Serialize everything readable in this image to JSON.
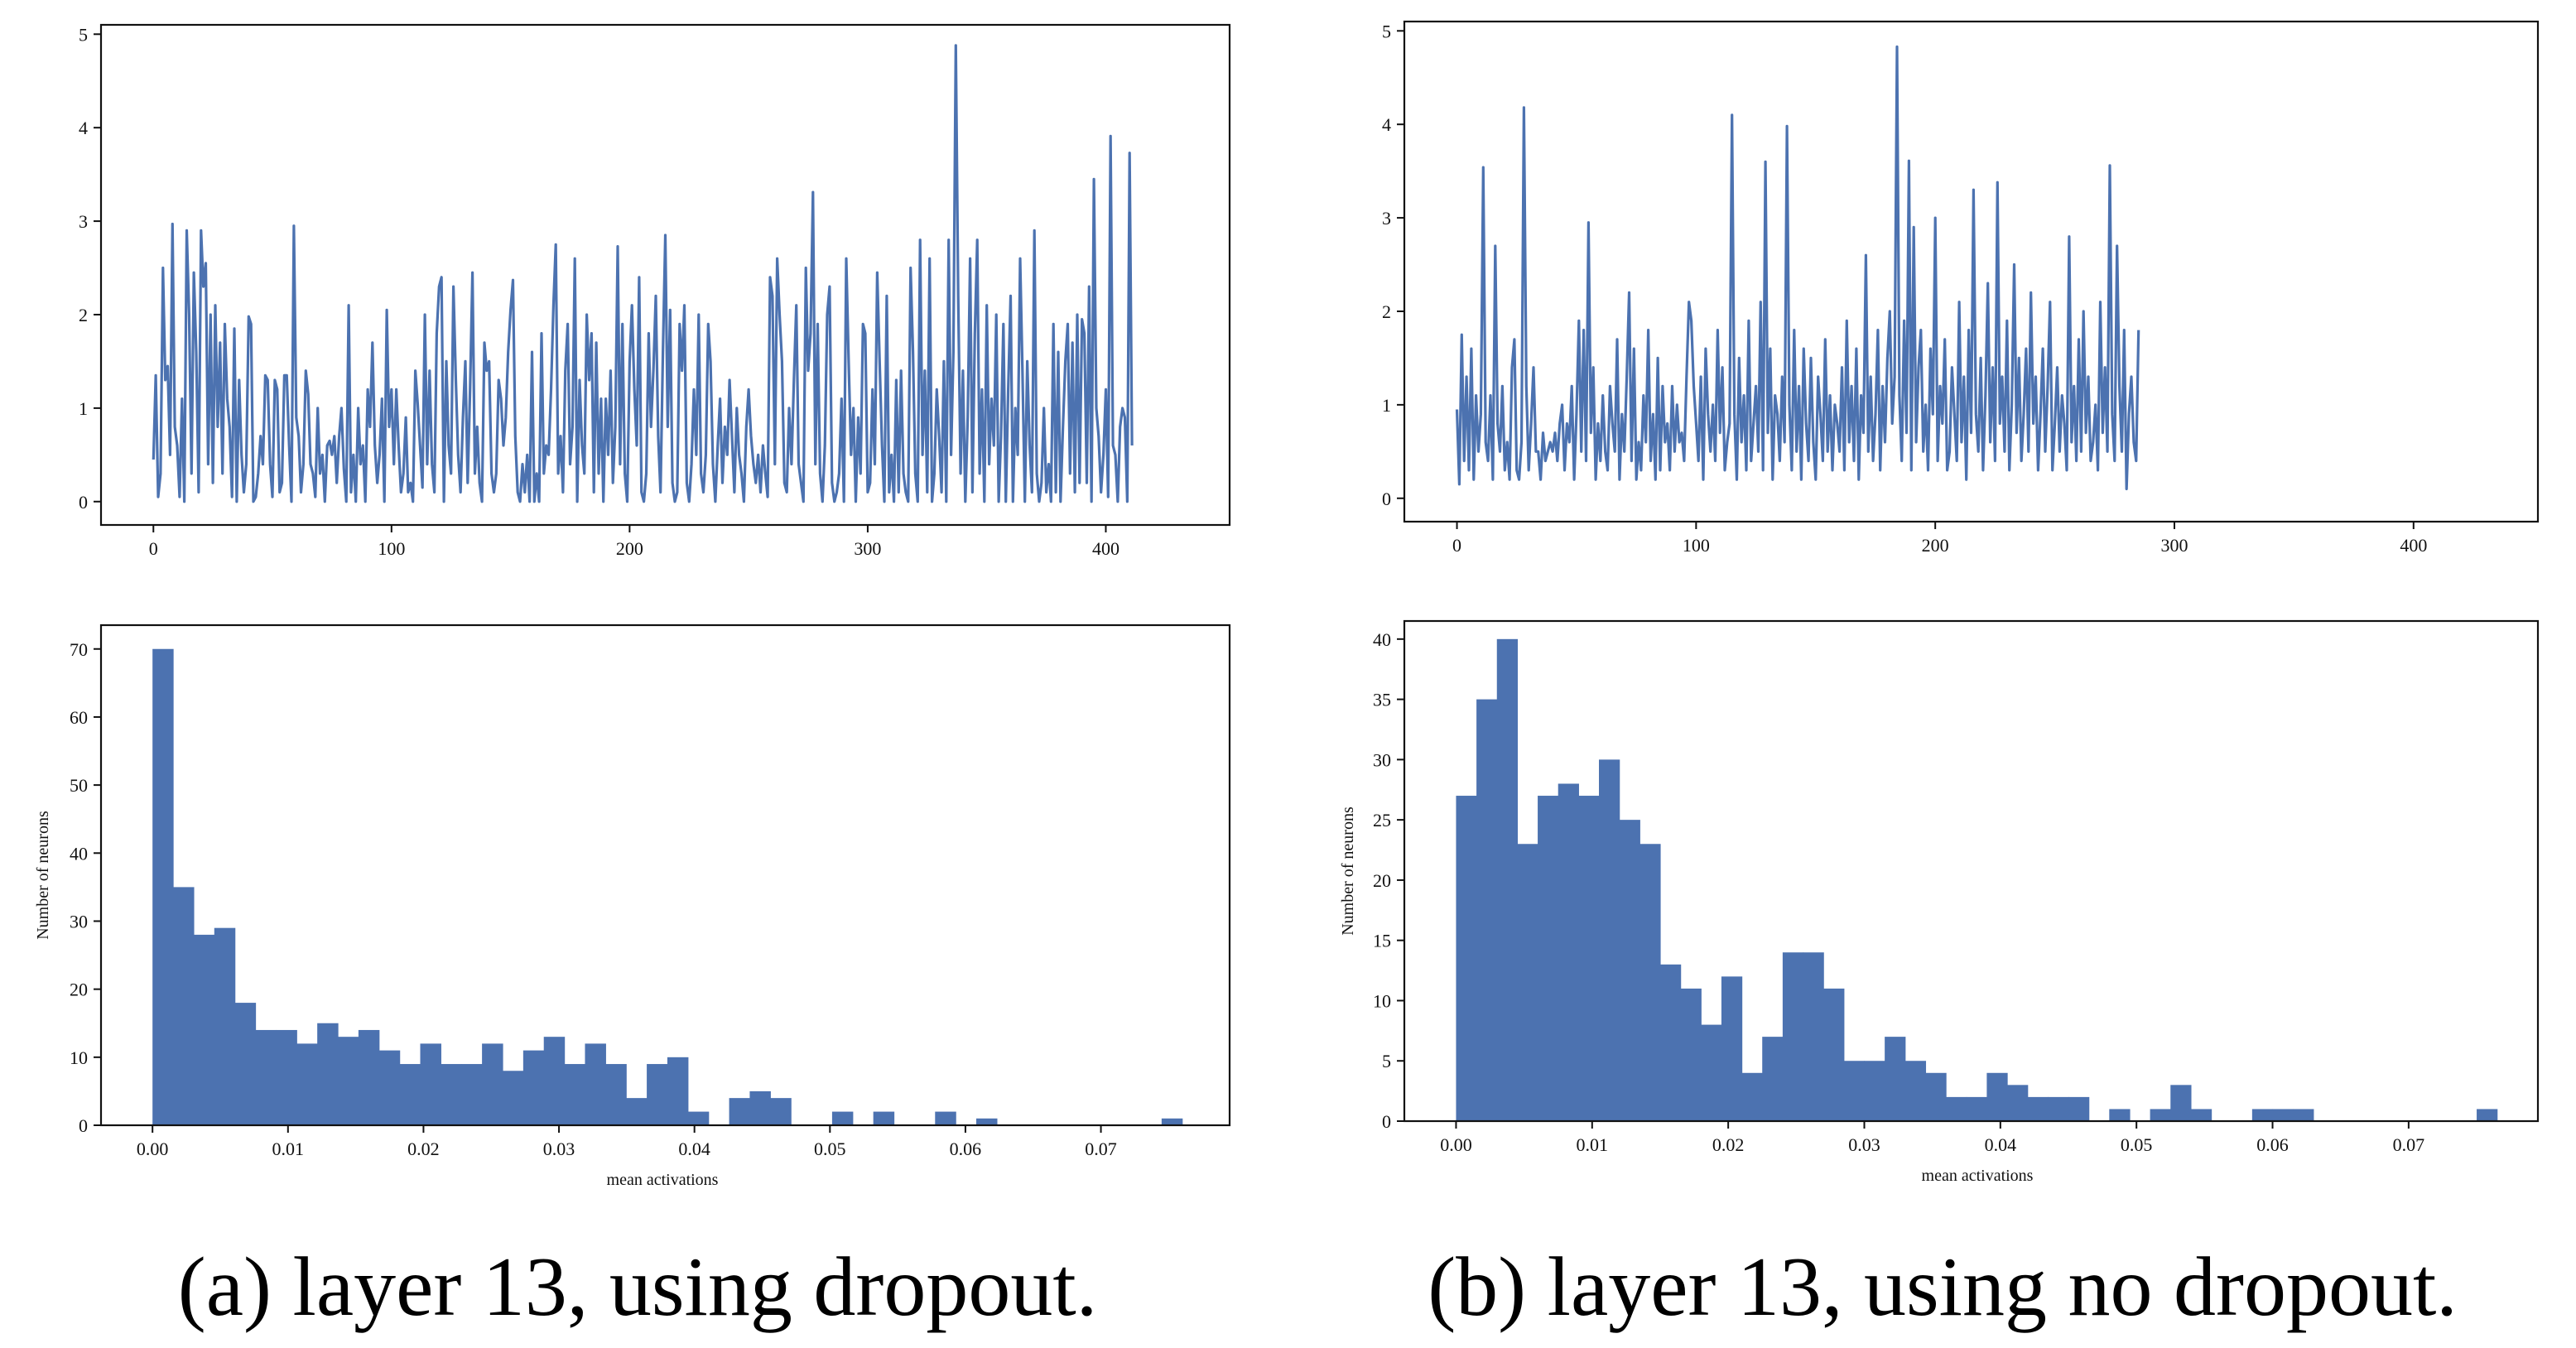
{
  "captions": {
    "a": "(a) layer 13, using dropout.",
    "b": "(b) layer 13, using no dropout."
  },
  "colors": {
    "series": "#4c72b0"
  },
  "chart_data": [
    {
      "id": "a_top",
      "type": "line",
      "title": "",
      "xlabel": "",
      "ylabel": "",
      "xlim": [
        -22,
        452
      ],
      "ylim": [
        -0.25,
        5.1
      ],
      "xticks": [
        0,
        100,
        200,
        300,
        400
      ],
      "yticks": [
        0,
        1,
        2,
        3,
        4,
        5
      ],
      "grid": false,
      "x_start": 0,
      "values": [
        0.45,
        1.35,
        0.05,
        0.3,
        2.5,
        1.3,
        1.45,
        0.5,
        2.97,
        0.8,
        0.6,
        0.05,
        1.1,
        0.0,
        2.9,
        2.0,
        0.3,
        2.45,
        1.6,
        0.1,
        2.9,
        2.3,
        2.55,
        0.4,
        2.0,
        0.2,
        2.1,
        0.8,
        1.7,
        0.3,
        1.9,
        1.1,
        0.8,
        0.05,
        1.85,
        0.0,
        1.3,
        0.5,
        0.1,
        0.4,
        1.98,
        1.9,
        0.0,
        0.05,
        0.3,
        0.7,
        0.4,
        1.35,
        1.3,
        0.4,
        0.05,
        1.3,
        1.2,
        0.1,
        0.2,
        1.35,
        1.35,
        0.6,
        0.0,
        2.95,
        0.9,
        0.7,
        0.1,
        0.4,
        1.4,
        1.15,
        0.4,
        0.3,
        0.05,
        1.0,
        0.3,
        0.5,
        0.0,
        0.6,
        0.65,
        0.5,
        0.7,
        0.2,
        0.7,
        1.0,
        0.35,
        0.0,
        2.1,
        0.1,
        0.5,
        0.0,
        1.0,
        0.4,
        0.6,
        0.0,
        1.2,
        0.8,
        1.7,
        0.6,
        0.2,
        0.5,
        1.1,
        0.0,
        2.05,
        0.8,
        1.2,
        0.4,
        1.2,
        0.6,
        0.1,
        0.3,
        0.9,
        0.1,
        0.2,
        0.0,
        1.4,
        1.05,
        0.6,
        0.15,
        2.0,
        0.4,
        1.4,
        0.4,
        0.1,
        1.8,
        2.3,
        2.4,
        0.0,
        1.5,
        0.6,
        0.3,
        2.3,
        1.3,
        0.5,
        0.1,
        0.9,
        1.5,
        0.2,
        1.2,
        2.45,
        0.3,
        0.8,
        0.2,
        0.0,
        1.7,
        1.4,
        1.5,
        0.3,
        0.1,
        0.3,
        1.3,
        1.1,
        0.6,
        0.9,
        1.6,
        2.05,
        2.37,
        0.7,
        0.1,
        0.0,
        0.4,
        0.1,
        0.5,
        0.0,
        1.6,
        0.0,
        0.3,
        0.0,
        1.8,
        0.3,
        0.6,
        0.5,
        1.2,
        2.1,
        2.75,
        0.3,
        0.7,
        0.1,
        1.4,
        1.9,
        0.4,
        0.8,
        2.6,
        0.0,
        1.3,
        0.6,
        0.3,
        2.0,
        1.3,
        1.8,
        0.1,
        1.7,
        0.3,
        1.1,
        0.0,
        1.1,
        0.5,
        1.4,
        0.2,
        0.8,
        2.73,
        0.4,
        1.9,
        0.3,
        0.0,
        1.5,
        2.1,
        1.2,
        0.6,
        2.4,
        0.1,
        0.0,
        0.3,
        1.8,
        0.8,
        1.4,
        2.2,
        0.7,
        0.1,
        1.6,
        2.85,
        0.8,
        2.05,
        0.2,
        0.0,
        0.1,
        1.9,
        1.4,
        2.1,
        0.2,
        0.0,
        0.4,
        1.2,
        0.5,
        2.0,
        0.3,
        0.1,
        0.5,
        1.9,
        1.5,
        0.4,
        0.0,
        0.6,
        1.1,
        0.2,
        0.8,
        0.5,
        1.3,
        0.7,
        0.1,
        1.0,
        0.5,
        0.3,
        0.0,
        0.8,
        1.2,
        0.7,
        0.4,
        0.2,
        0.5,
        0.1,
        0.6,
        0.3,
        0.05,
        2.4,
        2.2,
        0.4,
        2.6,
        2.0,
        1.5,
        0.2,
        0.1,
        1.0,
        0.4,
        1.3,
        2.1,
        0.4,
        0.2,
        0.0,
        2.5,
        1.4,
        1.8,
        3.31,
        0.4,
        1.9,
        0.3,
        0.0,
        0.6,
        2.0,
        2.3,
        0.2,
        0.0,
        0.1,
        0.3,
        1.1,
        0.0,
        2.6,
        1.5,
        0.5,
        1.0,
        0.0,
        0.9,
        0.3,
        1.9,
        1.8,
        0.1,
        0.2,
        1.2,
        0.4,
        2.45,
        1.5,
        0.6,
        0.0,
        2.2,
        0.1,
        0.5,
        0.0,
        1.3,
        0.1,
        1.4,
        0.3,
        0.1,
        0.0,
        2.5,
        1.6,
        0.3,
        0.0,
        2.8,
        0.5,
        1.4,
        0.1,
        2.6,
        0.0,
        0.3,
        1.2,
        0.7,
        0.1,
        1.5,
        0.0,
        2.8,
        0.5,
        1.6,
        4.88,
        2.2,
        0.3,
        1.4,
        0.0,
        0.9,
        2.6,
        0.1,
        1.8,
        2.8,
        0.3,
        1.2,
        0.0,
        2.1,
        0.4,
        1.1,
        0.6,
        2.0,
        0.0,
        0.7,
        1.9,
        0.0,
        1.2,
        2.2,
        0.0,
        1.0,
        0.5,
        2.6,
        1.4,
        0.0,
        1.5,
        0.6,
        0.1,
        2.9,
        0.3,
        0.0,
        0.2,
        1.0,
        0.1,
        0.4,
        0.0,
        1.9,
        0.1,
        1.6,
        0.0,
        0.8,
        1.5,
        1.9,
        0.3,
        1.7,
        0.1,
        2.0,
        0.2,
        1.95,
        1.8,
        0.2,
        2.3,
        0.0,
        3.45,
        1.0,
        0.7,
        0.1,
        0.5,
        1.2,
        0.05,
        3.91,
        0.6,
        0.5,
        0.0,
        0.8,
        1.0,
        0.9,
        0.0,
        3.73,
        0.6
      ]
    },
    {
      "id": "b_top",
      "type": "line",
      "title": "",
      "xlabel": "",
      "ylabel": "",
      "xlim": [
        -22,
        452
      ],
      "ylim": [
        -0.25,
        5.1
      ],
      "xticks": [
        0,
        100,
        200,
        300,
        400
      ],
      "yticks": [
        0,
        1,
        2,
        3,
        4,
        5
      ],
      "grid": false,
      "x_start": 0,
      "values": [
        0.95,
        0.15,
        1.75,
        0.4,
        1.3,
        0.3,
        1.6,
        0.2,
        1.1,
        0.5,
        0.9,
        3.54,
        0.6,
        0.4,
        1.1,
        0.2,
        2.7,
        0.8,
        0.5,
        1.2,
        0.3,
        0.6,
        0.2,
        1.4,
        1.7,
        0.3,
        0.2,
        0.6,
        4.18,
        1.2,
        0.3,
        0.8,
        1.4,
        0.5,
        0.5,
        0.2,
        0.7,
        0.4,
        0.5,
        0.6,
        0.5,
        0.7,
        0.4,
        0.8,
        1.0,
        0.3,
        0.8,
        0.6,
        1.2,
        0.2,
        0.9,
        1.9,
        0.5,
        1.8,
        0.4,
        2.95,
        0.7,
        1.4,
        0.2,
        0.8,
        0.4,
        1.1,
        0.5,
        0.3,
        1.2,
        0.8,
        0.5,
        1.7,
        0.2,
        0.9,
        0.5,
        1.3,
        2.2,
        0.4,
        1.6,
        0.2,
        0.6,
        0.3,
        1.1,
        0.6,
        1.8,
        0.4,
        0.9,
        0.2,
        1.5,
        0.3,
        1.2,
        0.6,
        0.8,
        0.3,
        1.2,
        0.5,
        1.0,
        0.6,
        0.7,
        0.4,
        1.3,
        2.1,
        1.9,
        1.2,
        0.8,
        0.4,
        1.3,
        0.2,
        1.6,
        0.9,
        0.5,
        1.0,
        0.4,
        1.8,
        0.7,
        1.4,
        0.3,
        0.6,
        0.8,
        4.1,
        0.9,
        0.2,
        1.5,
        0.6,
        1.1,
        0.3,
        1.9,
        0.4,
        0.8,
        1.2,
        0.5,
        2.1,
        0.3,
        3.6,
        0.7,
        1.6,
        0.2,
        1.1,
        0.9,
        0.4,
        1.3,
        0.6,
        3.98,
        1.0,
        0.3,
        1.8,
        0.5,
        1.2,
        0.2,
        1.6,
        0.8,
        0.4,
        1.5,
        0.6,
        0.2,
        1.3,
        0.9,
        0.4,
        1.7,
        0.5,
        1.1,
        0.3,
        1.0,
        0.8,
        0.5,
        1.4,
        0.3,
        1.9,
        0.6,
        1.2,
        0.4,
        1.6,
        0.2,
        1.1,
        0.7,
        2.6,
        0.5,
        1.3,
        0.4,
        0.9,
        1.8,
        0.3,
        1.2,
        0.6,
        1.5,
        2.0,
        0.8,
        1.3,
        4.83,
        1.1,
        0.4,
        1.9,
        0.7,
        3.61,
        0.3,
        2.9,
        0.6,
        1.4,
        1.8,
        0.5,
        1.0,
        0.3,
        1.6,
        0.9,
        3.0,
        0.4,
        1.2,
        0.8,
        1.7,
        0.3,
        0.5,
        1.4,
        0.9,
        0.4,
        2.1,
        0.6,
        1.3,
        0.2,
        1.8,
        0.7,
        3.3,
        0.9,
        0.5,
        1.5,
        0.3,
        1.1,
        2.3,
        0.6,
        1.4,
        0.4,
        3.38,
        0.8,
        1.3,
        0.5,
        1.9,
        0.3,
        1.0,
        2.5,
        0.7,
        1.5,
        0.4,
        0.9,
        1.6,
        0.5,
        2.2,
        0.8,
        1.3,
        0.3,
        0.9,
        1.6,
        0.5,
        1.2,
        2.1,
        0.3,
        0.8,
        1.4,
        0.5,
        1.1,
        0.8,
        0.3,
        2.8,
        0.6,
        1.2,
        0.4,
        1.7,
        0.5,
        2.0,
        0.7,
        1.3,
        0.4,
        0.6,
        1.0,
        0.3,
        2.1,
        0.7,
        1.4,
        0.5,
        3.56,
        0.9,
        0.4,
        2.7,
        1.2,
        0.5,
        1.8,
        0.1,
        0.9,
        1.3,
        0.6,
        0.4,
        1.8
      ]
    },
    {
      "id": "a_bottom",
      "type": "bar",
      "title": "",
      "xlabel": "mean activations",
      "ylabel": "Number of neurons",
      "xlim": [
        -0.0038,
        0.0795
      ],
      "ylim": [
        0,
        73.5
      ],
      "xticks": [
        0.0,
        0.01,
        0.02,
        0.03,
        0.04,
        0.05,
        0.06,
        0.07
      ],
      "xtick_labels": [
        "0.00",
        "0.01",
        "0.02",
        "0.03",
        "0.04",
        "0.05",
        "0.06",
        "0.07"
      ],
      "yticks": [
        0,
        10,
        20,
        30,
        40,
        50,
        60,
        70
      ],
      "grid": false,
      "bin_start": 0.0,
      "bin_width": 0.00152,
      "values": [
        70,
        35,
        28,
        29,
        18,
        14,
        14,
        12,
        15,
        13,
        14,
        11,
        9,
        12,
        9,
        9,
        12,
        8,
        11,
        13,
        9,
        12,
        9,
        4,
        9,
        10,
        2,
        0,
        4,
        5,
        4,
        0,
        0,
        2,
        0,
        2,
        0,
        0,
        2,
        0,
        1,
        0,
        0,
        0,
        0,
        0,
        0,
        0,
        0,
        1
      ]
    },
    {
      "id": "b_bottom",
      "type": "bar",
      "title": "",
      "xlabel": "mean activations",
      "ylabel": "Number of neurons",
      "xlim": [
        -0.0038,
        0.0795
      ],
      "ylim": [
        0,
        41.5
      ],
      "xticks": [
        0.0,
        0.01,
        0.02,
        0.03,
        0.04,
        0.05,
        0.06,
        0.07
      ],
      "xtick_labels": [
        "0.00",
        "0.01",
        "0.02",
        "0.03",
        "0.04",
        "0.05",
        "0.06",
        "0.07"
      ],
      "yticks": [
        0,
        5,
        10,
        15,
        20,
        25,
        30,
        35,
        40
      ],
      "grid": false,
      "bin_start": 0.0,
      "bin_width": 0.0015,
      "values": [
        27,
        35,
        40,
        23,
        27,
        28,
        27,
        30,
        25,
        23,
        13,
        11,
        8,
        12,
        4,
        7,
        14,
        14,
        11,
        5,
        5,
        7,
        5,
        4,
        2,
        2,
        4,
        3,
        2,
        2,
        2,
        0,
        1,
        0,
        1,
        3,
        1,
        0,
        0,
        1,
        1,
        1,
        0,
        0,
        0,
        0,
        0,
        0,
        0,
        0,
        1
      ]
    }
  ]
}
